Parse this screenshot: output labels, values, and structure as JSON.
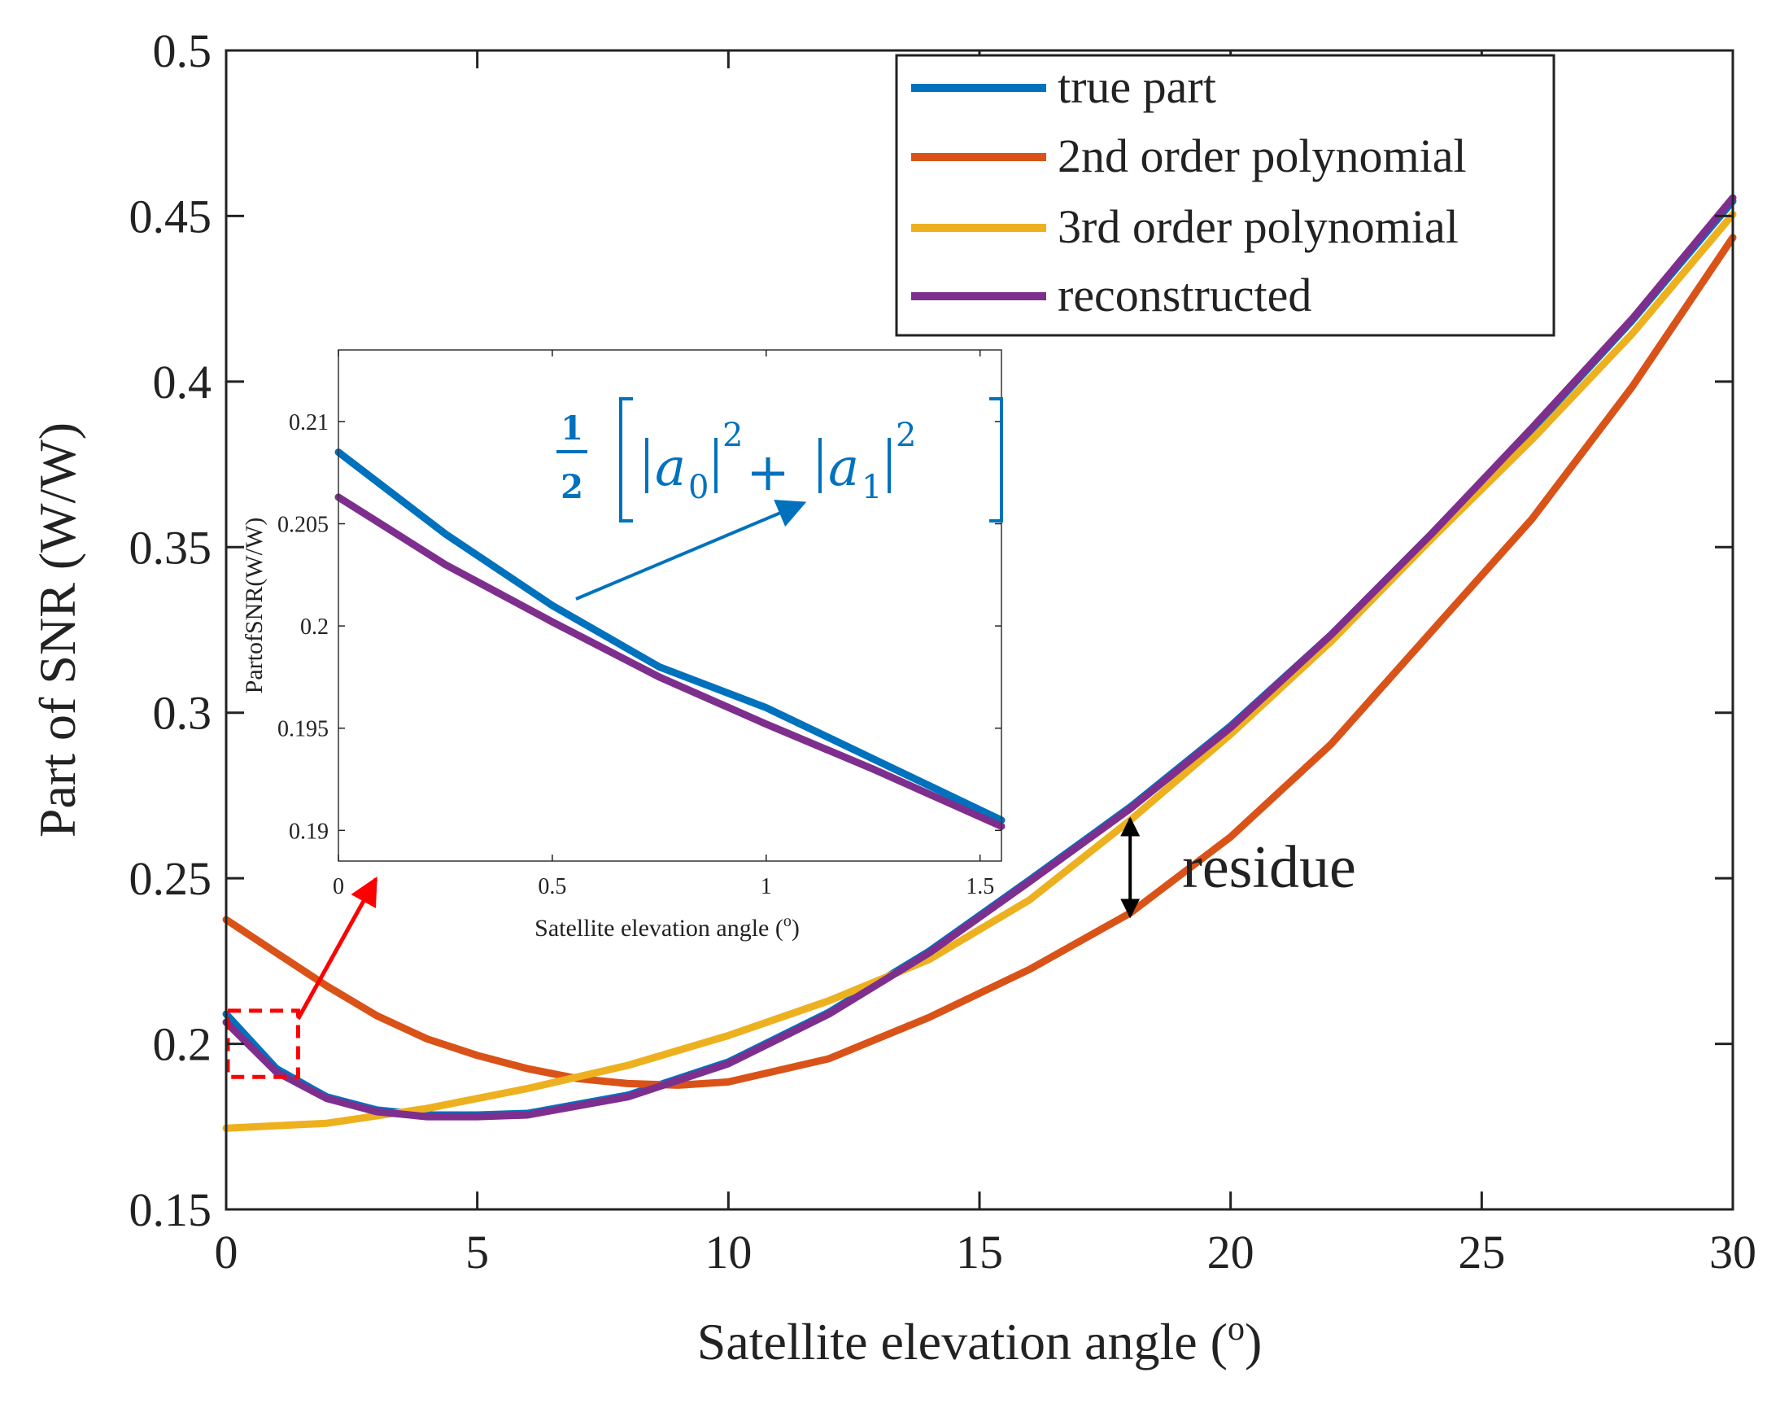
{
  "chart_data": [
    {
      "name": "main-chart",
      "type": "line",
      "title": "",
      "xlabel": "Satellite elevation angle (",
      "xlabel_superscript": "o",
      "xlabel_suffix": ")",
      "ylabel": "Part of SNR (W/W)",
      "xlim": [
        0,
        30
      ],
      "ylim": [
        0.15,
        0.5
      ],
      "xticks": [
        0,
        5,
        10,
        15,
        20,
        25,
        30
      ],
      "xtick_labels": [
        "0",
        "5",
        "10",
        "15",
        "20",
        "25",
        "30"
      ],
      "yticks": [
        0.15,
        0.2,
        0.25,
        0.3,
        0.35,
        0.4,
        0.45,
        0.5
      ],
      "ytick_labels": [
        "0.15",
        "0.2",
        "0.25",
        "0.3",
        "0.35",
        "0.4",
        "0.45",
        "0.5"
      ],
      "grid": false,
      "legend_position": "top-right",
      "series": [
        {
          "name": "true part",
          "color": "#0072bd",
          "x": [
            0,
            1,
            2,
            3,
            4,
            5,
            6,
            8,
            10,
            12,
            14,
            16,
            18,
            20,
            22,
            24,
            26,
            28,
            30
          ],
          "y": [
            0.209,
            0.1925,
            0.184,
            0.18,
            0.1785,
            0.1785,
            0.179,
            0.1845,
            0.1945,
            0.2095,
            0.228,
            0.2495,
            0.2715,
            0.296,
            0.3235,
            0.354,
            0.3855,
            0.4185,
            0.4545
          ]
        },
        {
          "name": "2nd order polynomial",
          "color": "#d95319",
          "x": [
            0,
            1,
            2,
            3,
            4,
            5,
            6,
            7,
            8,
            9,
            10,
            12,
            14,
            16,
            18,
            20,
            22,
            24,
            26,
            28,
            30
          ],
          "y": [
            0.2375,
            0.2275,
            0.2175,
            0.2085,
            0.2015,
            0.1965,
            0.1925,
            0.1895,
            0.188,
            0.1875,
            0.1885,
            0.1955,
            0.208,
            0.2225,
            0.2395,
            0.2625,
            0.2905,
            0.3245,
            0.3585,
            0.3985,
            0.4435
          ]
        },
        {
          "name": "3rd order polynomial",
          "color": "#edb120",
          "x": [
            0,
            2,
            4,
            6,
            8,
            10,
            12,
            14,
            16,
            18,
            20,
            22,
            24,
            26,
            28,
            30
          ],
          "y": [
            0.1745,
            0.176,
            0.1805,
            0.1865,
            0.1935,
            0.2025,
            0.213,
            0.2255,
            0.2435,
            0.2675,
            0.2935,
            0.3215,
            0.3525,
            0.3825,
            0.4145,
            0.4505
          ]
        },
        {
          "name": "reconstructed",
          "color": "#7e2f8e",
          "x": [
            0,
            1,
            2,
            3,
            4,
            5,
            6,
            8,
            10,
            12,
            14,
            16,
            18,
            20,
            22,
            24,
            26,
            28,
            30
          ],
          "y": [
            0.2065,
            0.1915,
            0.1835,
            0.1795,
            0.178,
            0.178,
            0.1785,
            0.184,
            0.194,
            0.209,
            0.2275,
            0.249,
            0.271,
            0.2955,
            0.3235,
            0.354,
            0.386,
            0.419,
            0.4555
          ]
        }
      ],
      "annotations": {
        "residue_label": "residue",
        "residue_x": 18,
        "residue_y_top": 0.268,
        "residue_y_bottom": 0.2385,
        "zoom_box_x": [
          0,
          1.4
        ],
        "zoom_box_y": [
          0.19,
          0.21
        ]
      }
    },
    {
      "name": "inset-chart",
      "type": "line",
      "title": "",
      "xlabel": "Satellite elevation angle (",
      "xlabel_superscript": "o",
      "xlabel_suffix": ")",
      "ylabel": "PartofSNR(W/W)",
      "xlim": [
        0,
        1.55
      ],
      "ylim": [
        0.1885,
        0.2135
      ],
      "xticks": [
        0,
        0.5,
        1,
        1.5
      ],
      "xtick_labels": [
        "0",
        "0.5",
        "1",
        "1.5"
      ],
      "yticks": [
        0.19,
        0.195,
        0.2,
        0.205,
        0.21
      ],
      "ytick_labels": [
        "0.19",
        "0.195",
        "0.2",
        "0.205",
        "0.21"
      ],
      "grid": false,
      "series": [
        {
          "name": "true part",
          "color": "#0072bd",
          "x": [
            0,
            0.25,
            0.5,
            0.75,
            1.0,
            1.25,
            1.55
          ],
          "y": [
            0.2085,
            0.2045,
            0.201,
            0.198,
            0.196,
            0.1935,
            0.1905
          ]
        },
        {
          "name": "reconstructed",
          "color": "#7e2f8e",
          "x": [
            0,
            0.25,
            0.5,
            0.75,
            1.0,
            1.25,
            1.55
          ],
          "y": [
            0.2063,
            0.203,
            0.2002,
            0.1975,
            0.1952,
            0.193,
            0.1902
          ]
        }
      ],
      "annotations": {
        "formula_half": "1",
        "formula_denominator": "2",
        "formula_a": "a",
        "formula_sub0": "0",
        "formula_sub1": "1",
        "formula_power": "2",
        "formula_plus": "+"
      }
    }
  ]
}
